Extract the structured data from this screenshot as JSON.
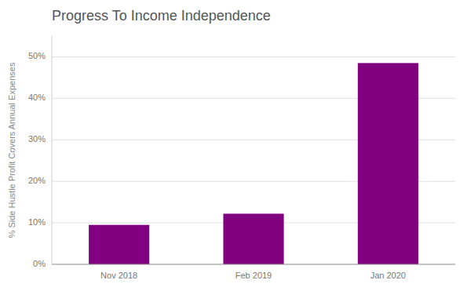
{
  "chart_data": {
    "type": "bar",
    "title": "Progress To Income Independence",
    "categories": [
      "Nov 2018",
      "Feb 2019",
      "Jan 2020"
    ],
    "values": [
      9.5,
      12.2,
      48.5
    ],
    "color": "#800080",
    "ylabel": "% Side Hustle Profit Covers Annual Expenses",
    "ylim": [
      0,
      55
    ],
    "yticks": [
      {
        "value": 0,
        "label": "0%"
      },
      {
        "value": 10,
        "label": "10%"
      },
      {
        "value": 20,
        "label": "20%"
      },
      {
        "value": 30,
        "label": "30%"
      },
      {
        "value": 40,
        "label": "40%"
      },
      {
        "value": 50,
        "label": "50%"
      }
    ],
    "grid": true
  }
}
